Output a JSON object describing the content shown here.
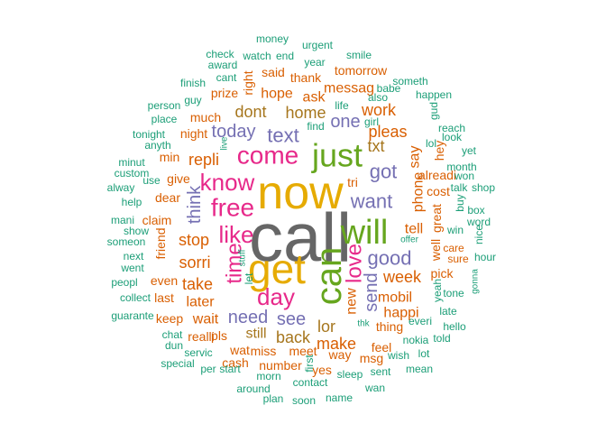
{
  "title": "",
  "palette": {
    "teal": "#1b9e77",
    "orange": "#d95f02",
    "purple": "#7570b3",
    "pink": "#e7298a",
    "green": "#66a61e",
    "gold": "#e6ab02",
    "brown": "#a6761d",
    "gray": "#666666"
  },
  "words": [
    {
      "text": "call",
      "color": "gray"
    },
    {
      "text": "now",
      "color": "gold"
    },
    {
      "text": "get",
      "color": "gold"
    },
    {
      "text": "can",
      "color": "green"
    },
    {
      "text": "will",
      "color": "green"
    },
    {
      "text": "just",
      "color": "green"
    },
    {
      "text": "come",
      "color": "pink"
    },
    {
      "text": "free",
      "color": "pink"
    },
    {
      "text": "like",
      "color": "pink"
    },
    {
      "text": "day",
      "color": "pink"
    },
    {
      "text": "know",
      "color": "pink"
    },
    {
      "text": "time",
      "color": "pink"
    },
    {
      "text": "love",
      "color": "pink"
    },
    {
      "text": "text",
      "color": "purple"
    },
    {
      "text": "got",
      "color": "purple"
    },
    {
      "text": "want",
      "color": "purple"
    },
    {
      "text": "good",
      "color": "purple"
    },
    {
      "text": "send",
      "color": "purple"
    },
    {
      "text": "today",
      "color": "purple"
    },
    {
      "text": "need",
      "color": "purple"
    },
    {
      "text": "see",
      "color": "purple"
    },
    {
      "text": "one",
      "color": "purple"
    },
    {
      "text": "think",
      "color": "purple"
    },
    {
      "text": "home",
      "color": "brown"
    },
    {
      "text": "dont",
      "color": "brown"
    },
    {
      "text": "txt",
      "color": "brown"
    },
    {
      "text": "back",
      "color": "brown"
    },
    {
      "text": "lor",
      "color": "brown"
    },
    {
      "text": "still",
      "color": "brown"
    },
    {
      "text": "new",
      "color": "orange"
    },
    {
      "text": "repli",
      "color": "orange"
    },
    {
      "text": "stop",
      "color": "orange"
    },
    {
      "text": "sorri",
      "color": "orange"
    },
    {
      "text": "take",
      "color": "orange"
    },
    {
      "text": "later",
      "color": "orange"
    },
    {
      "text": "wait",
      "color": "orange"
    },
    {
      "text": "make",
      "color": "orange"
    },
    {
      "text": "week",
      "color": "orange"
    },
    {
      "text": "pleas",
      "color": "orange"
    },
    {
      "text": "work",
      "color": "orange"
    },
    {
      "text": "tell",
      "color": "orange"
    },
    {
      "text": "mobil",
      "color": "orange"
    },
    {
      "text": "happi",
      "color": "orange"
    },
    {
      "text": "thing",
      "color": "orange"
    },
    {
      "text": "phone",
      "color": "orange"
    },
    {
      "text": "say",
      "color": "orange"
    },
    {
      "text": "hope",
      "color": "orange"
    },
    {
      "text": "ask",
      "color": "orange"
    },
    {
      "text": "messag",
      "color": "orange"
    },
    {
      "text": "much",
      "color": "orange"
    },
    {
      "text": "night",
      "color": "orange"
    },
    {
      "text": "give",
      "color": "orange"
    },
    {
      "text": "dear",
      "color": "orange"
    },
    {
      "text": "claim",
      "color": "orange"
    },
    {
      "text": "min",
      "color": "orange"
    },
    {
      "text": "tri",
      "color": "orange"
    },
    {
      "text": "miss",
      "color": "orange"
    },
    {
      "text": "meet",
      "color": "orange"
    },
    {
      "text": "way",
      "color": "orange"
    },
    {
      "text": "feel",
      "color": "orange"
    },
    {
      "text": "number",
      "color": "orange"
    },
    {
      "text": "wat",
      "color": "orange"
    },
    {
      "text": "cash",
      "color": "orange"
    },
    {
      "text": "realli",
      "color": "orange"
    },
    {
      "text": "pls",
      "color": "orange"
    },
    {
      "text": "even",
      "color": "orange"
    },
    {
      "text": "last",
      "color": "orange"
    },
    {
      "text": "keep",
      "color": "orange"
    },
    {
      "text": "friend",
      "color": "orange"
    },
    {
      "text": "great",
      "color": "orange"
    },
    {
      "text": "well",
      "color": "orange"
    },
    {
      "text": "alreadi",
      "color": "orange"
    },
    {
      "text": "pick",
      "color": "orange"
    },
    {
      "text": "yes",
      "color": "orange"
    },
    {
      "text": "said",
      "color": "orange"
    },
    {
      "text": "prize",
      "color": "orange"
    },
    {
      "text": "right",
      "color": "orange"
    },
    {
      "text": "thank",
      "color": "orange"
    },
    {
      "text": "tomorrow",
      "color": "orange"
    },
    {
      "text": "hey",
      "color": "orange"
    },
    {
      "text": "cost",
      "color": "orange"
    },
    {
      "text": "sure",
      "color": "orange"
    },
    {
      "text": "care",
      "color": "orange"
    },
    {
      "text": "msg",
      "color": "orange"
    },
    {
      "text": "money",
      "color": "teal"
    },
    {
      "text": "check",
      "color": "teal"
    },
    {
      "text": "watch",
      "color": "teal"
    },
    {
      "text": "end",
      "color": "teal"
    },
    {
      "text": "urgent",
      "color": "teal"
    },
    {
      "text": "smile",
      "color": "teal"
    },
    {
      "text": "award",
      "color": "teal"
    },
    {
      "text": "cant",
      "color": "teal"
    },
    {
      "text": "year",
      "color": "teal"
    },
    {
      "text": "finish",
      "color": "teal"
    },
    {
      "text": "someth",
      "color": "teal"
    },
    {
      "text": "guy",
      "color": "teal"
    },
    {
      "text": "babe",
      "color": "teal"
    },
    {
      "text": "also",
      "color": "teal"
    },
    {
      "text": "happen",
      "color": "teal"
    },
    {
      "text": "person",
      "color": "teal"
    },
    {
      "text": "life",
      "color": "teal"
    },
    {
      "text": "gud",
      "color": "teal"
    },
    {
      "text": "place",
      "color": "teal"
    },
    {
      "text": "girl",
      "color": "teal"
    },
    {
      "text": "reach",
      "color": "teal"
    },
    {
      "text": "tonight",
      "color": "teal"
    },
    {
      "text": "find",
      "color": "teal"
    },
    {
      "text": "lol",
      "color": "teal"
    },
    {
      "text": "look",
      "color": "teal"
    },
    {
      "text": "anyth",
      "color": "teal"
    },
    {
      "text": "live",
      "color": "teal"
    },
    {
      "text": "yet",
      "color": "teal"
    },
    {
      "text": "minut",
      "color": "teal"
    },
    {
      "text": "month",
      "color": "teal"
    },
    {
      "text": "custom",
      "color": "teal"
    },
    {
      "text": "won",
      "color": "teal"
    },
    {
      "text": "alway",
      "color": "teal"
    },
    {
      "text": "talk",
      "color": "teal"
    },
    {
      "text": "shop",
      "color": "teal"
    },
    {
      "text": "use",
      "color": "teal"
    },
    {
      "text": "help",
      "color": "teal"
    },
    {
      "text": "buy",
      "color": "teal"
    },
    {
      "text": "box",
      "color": "teal"
    },
    {
      "text": "mani",
      "color": "teal"
    },
    {
      "text": "word",
      "color": "teal"
    },
    {
      "text": "show",
      "color": "teal"
    },
    {
      "text": "win",
      "color": "teal"
    },
    {
      "text": "nice",
      "color": "teal"
    },
    {
      "text": "someon",
      "color": "teal"
    },
    {
      "text": "offer",
      "color": "teal"
    },
    {
      "text": "next",
      "color": "teal"
    },
    {
      "text": "stuff",
      "color": "teal"
    },
    {
      "text": "hour",
      "color": "teal"
    },
    {
      "text": "went",
      "color": "teal"
    },
    {
      "text": "peopl",
      "color": "teal"
    },
    {
      "text": "let",
      "color": "teal"
    },
    {
      "text": "gonna",
      "color": "teal"
    },
    {
      "text": "collect",
      "color": "teal"
    },
    {
      "text": "tone",
      "color": "teal"
    },
    {
      "text": "yeah",
      "color": "teal"
    },
    {
      "text": "guarante",
      "color": "teal"
    },
    {
      "text": "late",
      "color": "teal"
    },
    {
      "text": "everi",
      "color": "teal"
    },
    {
      "text": "hello",
      "color": "teal"
    },
    {
      "text": "chat",
      "color": "teal"
    },
    {
      "text": "thk",
      "color": "teal"
    },
    {
      "text": "told",
      "color": "teal"
    },
    {
      "text": "dun",
      "color": "teal"
    },
    {
      "text": "nokia",
      "color": "teal"
    },
    {
      "text": "servic",
      "color": "teal"
    },
    {
      "text": "lot",
      "color": "teal"
    },
    {
      "text": "wish",
      "color": "teal"
    },
    {
      "text": "special",
      "color": "teal"
    },
    {
      "text": "per",
      "color": "teal"
    },
    {
      "text": "start",
      "color": "teal"
    },
    {
      "text": "first",
      "color": "teal"
    },
    {
      "text": "sent",
      "color": "teal"
    },
    {
      "text": "mean",
      "color": "teal"
    },
    {
      "text": "morn",
      "color": "teal"
    },
    {
      "text": "contact",
      "color": "teal"
    },
    {
      "text": "sleep",
      "color": "teal"
    },
    {
      "text": "around",
      "color": "teal"
    },
    {
      "text": "wan",
      "color": "teal"
    },
    {
      "text": "plan",
      "color": "teal"
    },
    {
      "text": "soon",
      "color": "teal"
    },
    {
      "text": "name",
      "color": "teal"
    }
  ]
}
